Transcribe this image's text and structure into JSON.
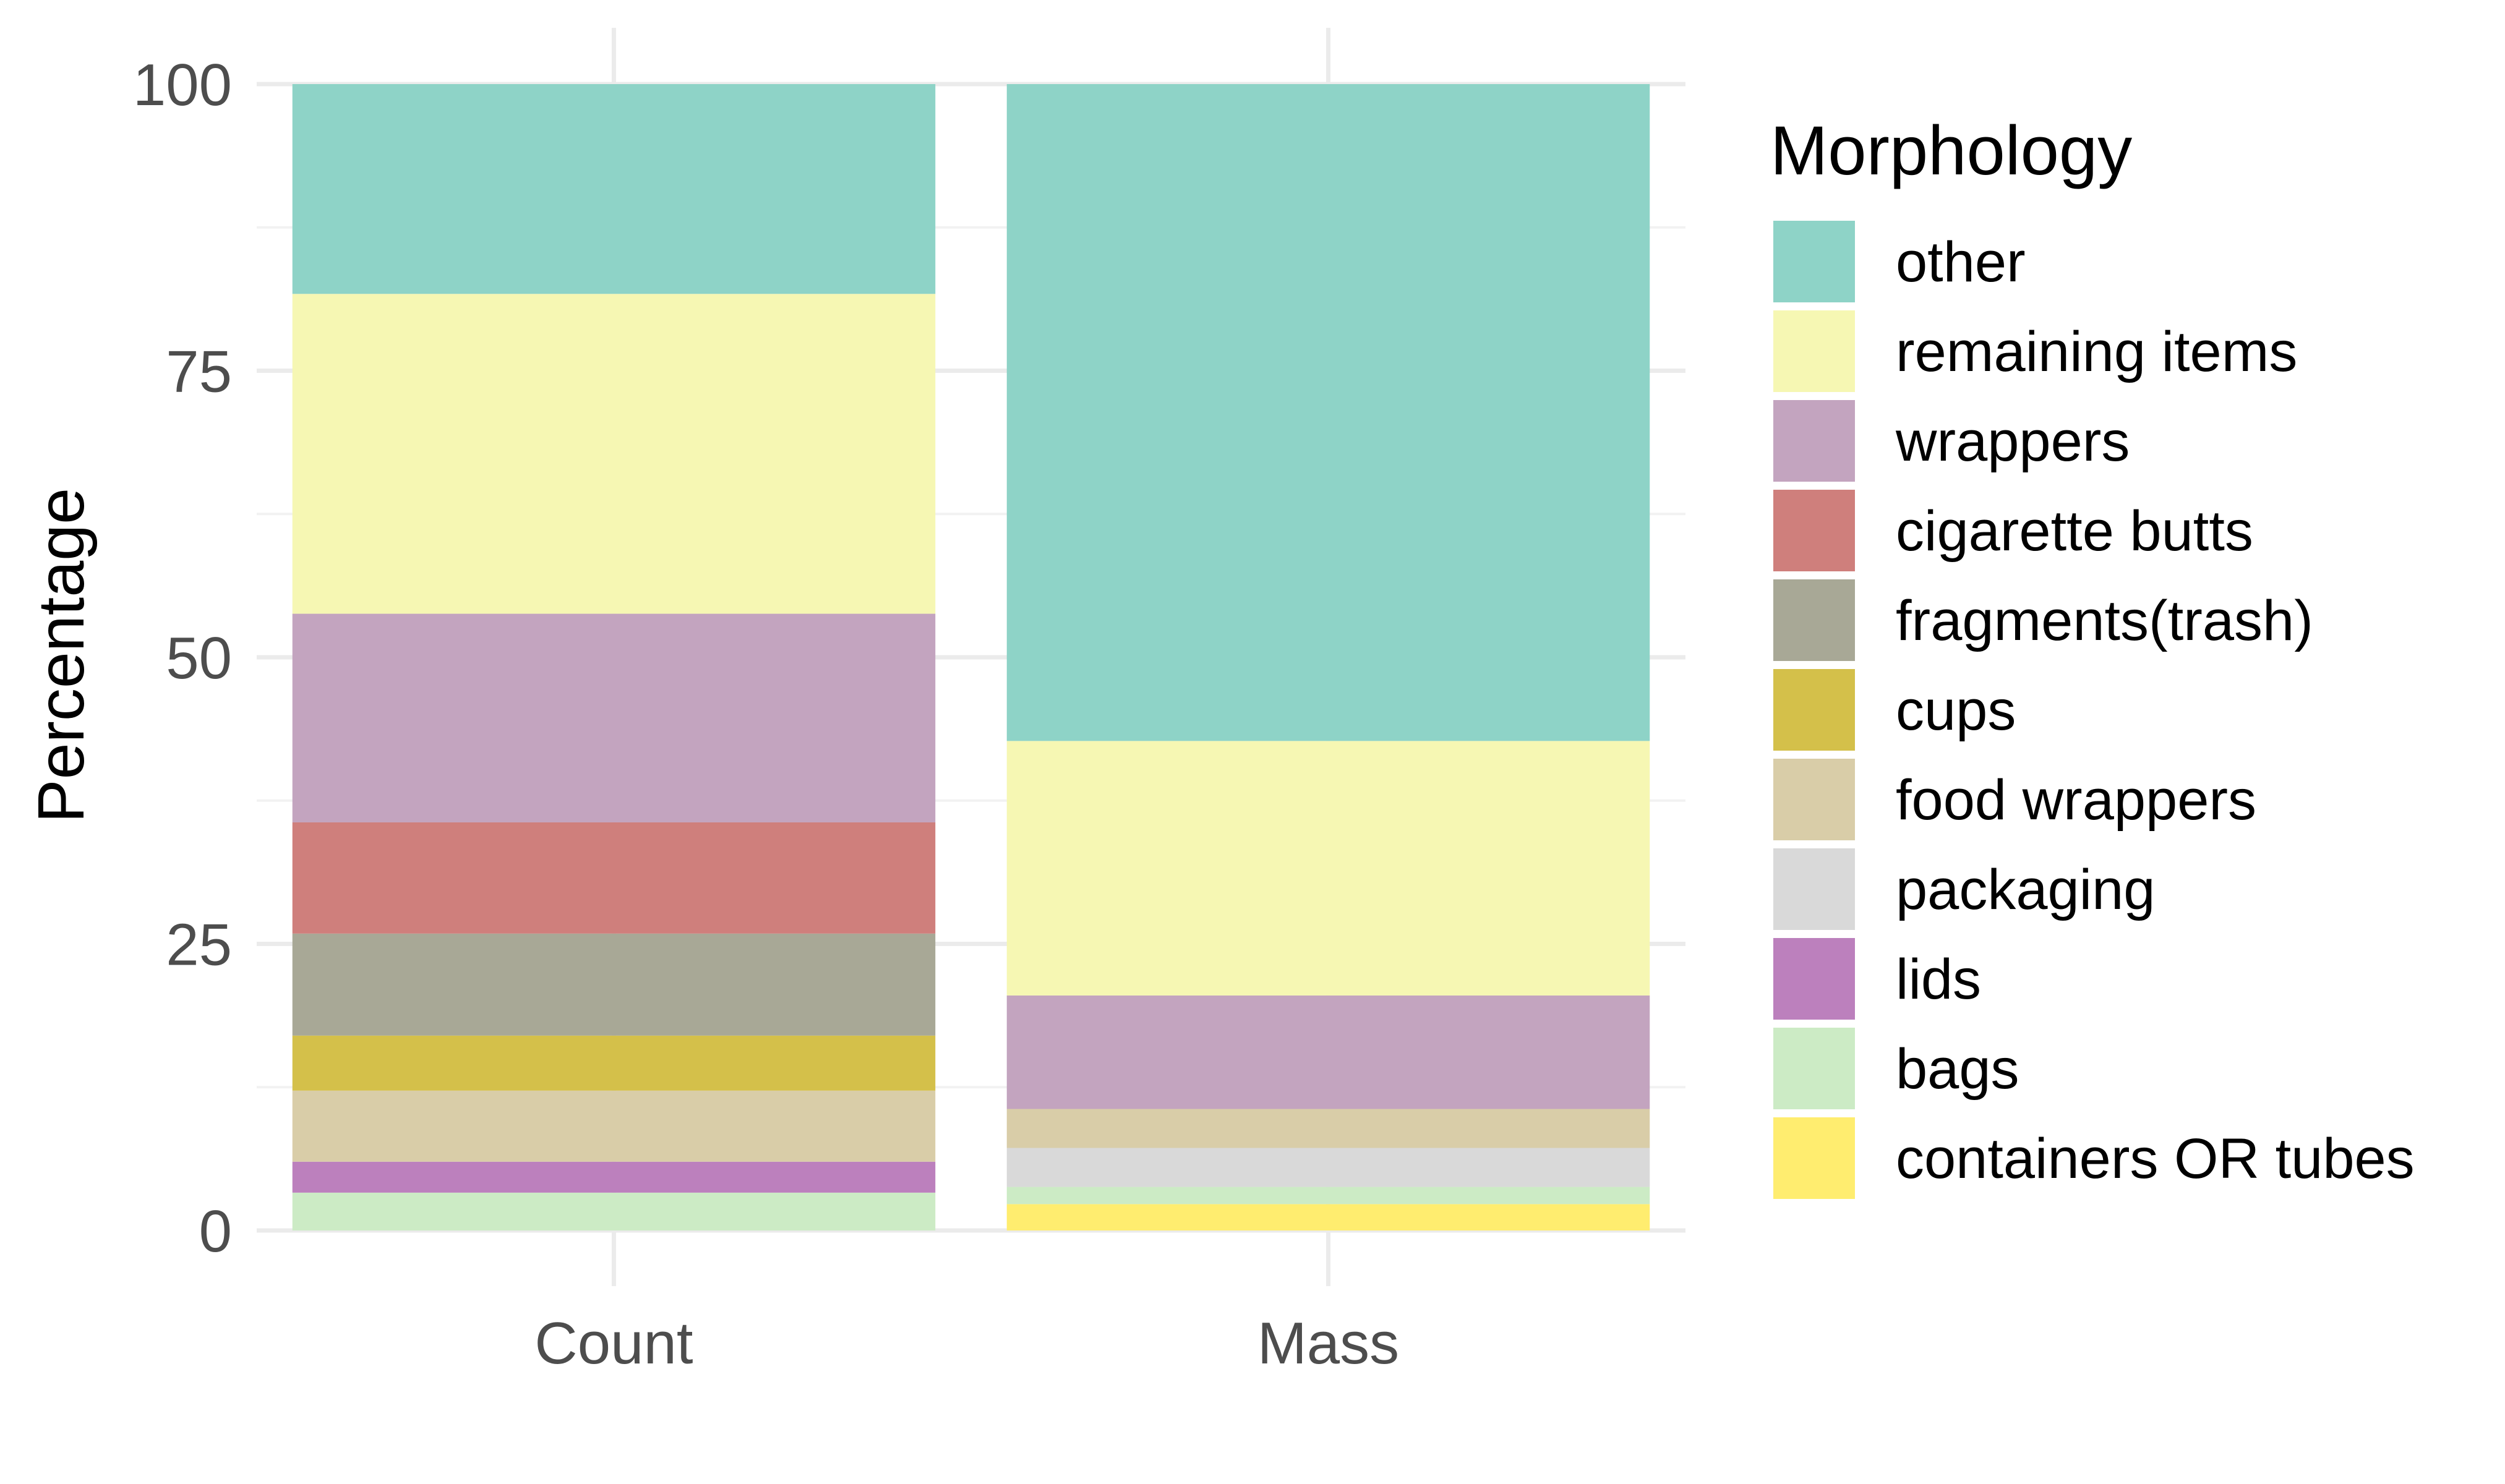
{
  "chart_data": {
    "type": "bar",
    "stacked": true,
    "categories": [
      "Count",
      "Mass"
    ],
    "xlabel": "",
    "ylabel": "Percentage",
    "ylim": [
      0,
      100
    ],
    "yticks": [
      0,
      25,
      50,
      75,
      100
    ],
    "grid": true,
    "legend": {
      "title": "Morphology",
      "position": "right"
    },
    "series": [
      {
        "name": "containers OR tubes",
        "color": "#FFED6F",
        "values": [
          0.0,
          2.3
        ]
      },
      {
        "name": "bags",
        "color": "#CCEBC5",
        "values": [
          3.3,
          1.5
        ]
      },
      {
        "name": "lids",
        "color": "#BC80BD",
        "values": [
          2.7,
          0.0
        ]
      },
      {
        "name": "packaging",
        "color": "#D9D9D9",
        "values": [
          0.0,
          3.4
        ]
      },
      {
        "name": "food wrappers",
        "color": "#D9CDA8",
        "values": [
          6.2,
          3.4
        ]
      },
      {
        "name": "cups",
        "color": "#D4C04A",
        "values": [
          4.8,
          0.0
        ]
      },
      {
        "name": "fragments(trash)",
        "color": "#A8A896",
        "values": [
          8.9,
          0.0
        ]
      },
      {
        "name": "cigarette butts",
        "color": "#CF7F7C",
        "values": [
          9.7,
          0.0
        ]
      },
      {
        "name": "wrappers",
        "color": "#C3A4BF",
        "values": [
          18.2,
          9.9
        ]
      },
      {
        "name": "remaining items",
        "color": "#F6F7B3",
        "values": [
          27.9,
          22.2
        ]
      },
      {
        "name": "other",
        "color": "#8ED3C7",
        "values": [
          18.3,
          57.3
        ]
      }
    ],
    "legend_order": [
      "other",
      "remaining items",
      "wrappers",
      "cigarette butts",
      "fragments(trash)",
      "cups",
      "food wrappers",
      "packaging",
      "lids",
      "bags",
      "containers OR tubes"
    ]
  }
}
